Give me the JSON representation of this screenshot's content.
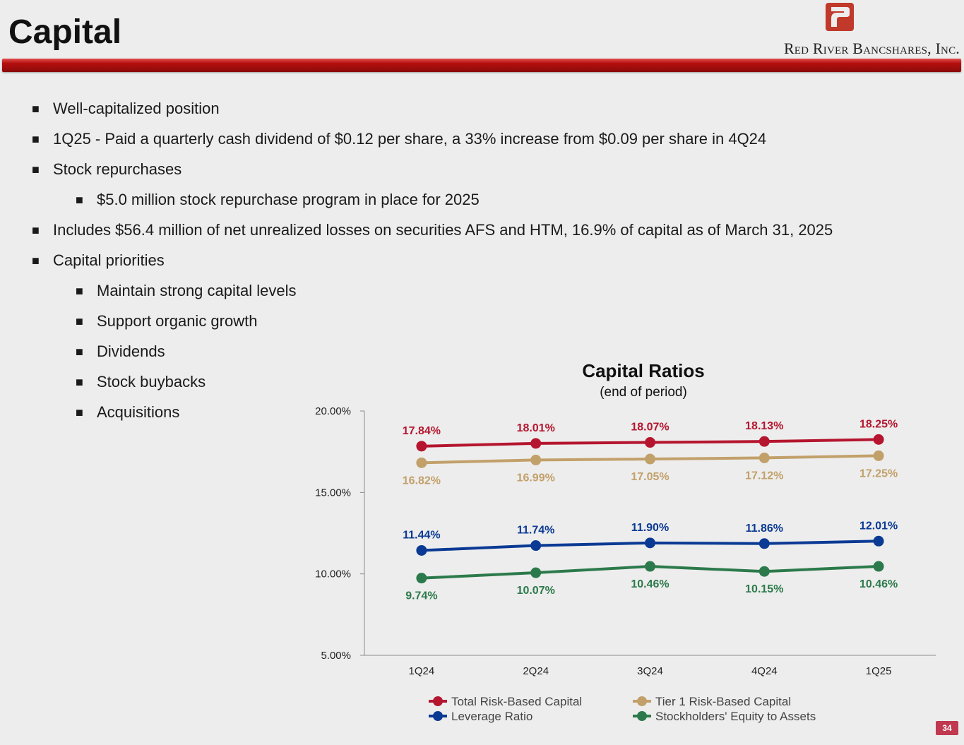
{
  "header": {
    "title": "Capital",
    "company": "Red River Bancshares, Inc."
  },
  "bullets": [
    {
      "level": 1,
      "text": "Well-capitalized position"
    },
    {
      "level": 1,
      "text": "1Q25 - Paid a quarterly cash dividend of $0.12 per share, a 33% increase from $0.09 per share in 4Q24"
    },
    {
      "level": 1,
      "text": "Stock repurchases"
    },
    {
      "level": 2,
      "text": "$5.0 million stock repurchase program in place for 2025"
    },
    {
      "level": 1,
      "text": "Includes $56.4 million of net unrealized losses on securities AFS and HTM, 16.9% of capital as of March 31, 2025"
    },
    {
      "level": 1,
      "text": "Capital priorities"
    },
    {
      "level": 2,
      "text": "Maintain strong capital levels"
    },
    {
      "level": 2,
      "text": "Support organic growth"
    },
    {
      "level": 2,
      "text": "Dividends"
    },
    {
      "level": 2,
      "text": "Stock buybacks"
    },
    {
      "level": 2,
      "text": "Acquisitions"
    }
  ],
  "bullet_glyph": "■",
  "chart_data": {
    "type": "line",
    "title": "Capital Ratios",
    "subtitle": "(end of period)",
    "categories": [
      "1Q24",
      "2Q24",
      "3Q24",
      "4Q24",
      "1Q25"
    ],
    "ylim": [
      5,
      20
    ],
    "yticks": [
      5,
      10,
      15,
      20
    ],
    "ytick_labels": [
      "5.00%",
      "10.00%",
      "15.00%",
      "20.00%"
    ],
    "legend_position": "bottom",
    "series": [
      {
        "name": "Total Risk-Based Capital",
        "color": "#b5152e",
        "label_pos": "above",
        "values": [
          17.84,
          18.01,
          18.07,
          18.13,
          18.25
        ],
        "labels": [
          "17.84%",
          "18.01%",
          "18.07%",
          "18.13%",
          "18.25%"
        ]
      },
      {
        "name": "Tier 1 Risk-Based Capital",
        "color": "#c2a06a",
        "label_pos": "below",
        "values": [
          16.82,
          16.99,
          17.05,
          17.12,
          17.25
        ],
        "labels": [
          "16.82%",
          "16.99%",
          "17.05%",
          "17.12%",
          "17.25%"
        ]
      },
      {
        "name": "Leverage Ratio",
        "color": "#0b3a94",
        "label_pos": "above",
        "values": [
          11.44,
          11.74,
          11.9,
          11.86,
          12.01
        ],
        "labels": [
          "11.44%",
          "11.74%",
          "11.90%",
          "11.86%",
          "12.01%"
        ]
      },
      {
        "name": "Stockholders' Equity to Assets",
        "color": "#2c7a4b",
        "label_pos": "below",
        "values": [
          9.74,
          10.07,
          10.46,
          10.15,
          10.46
        ],
        "labels": [
          "9.74%",
          "10.07%",
          "10.46%",
          "10.15%",
          "10.46%"
        ]
      }
    ]
  },
  "footer": {
    "page_number": "34"
  },
  "colors": {
    "accent": "#b50e0e",
    "page_badge": "#c0394f"
  }
}
